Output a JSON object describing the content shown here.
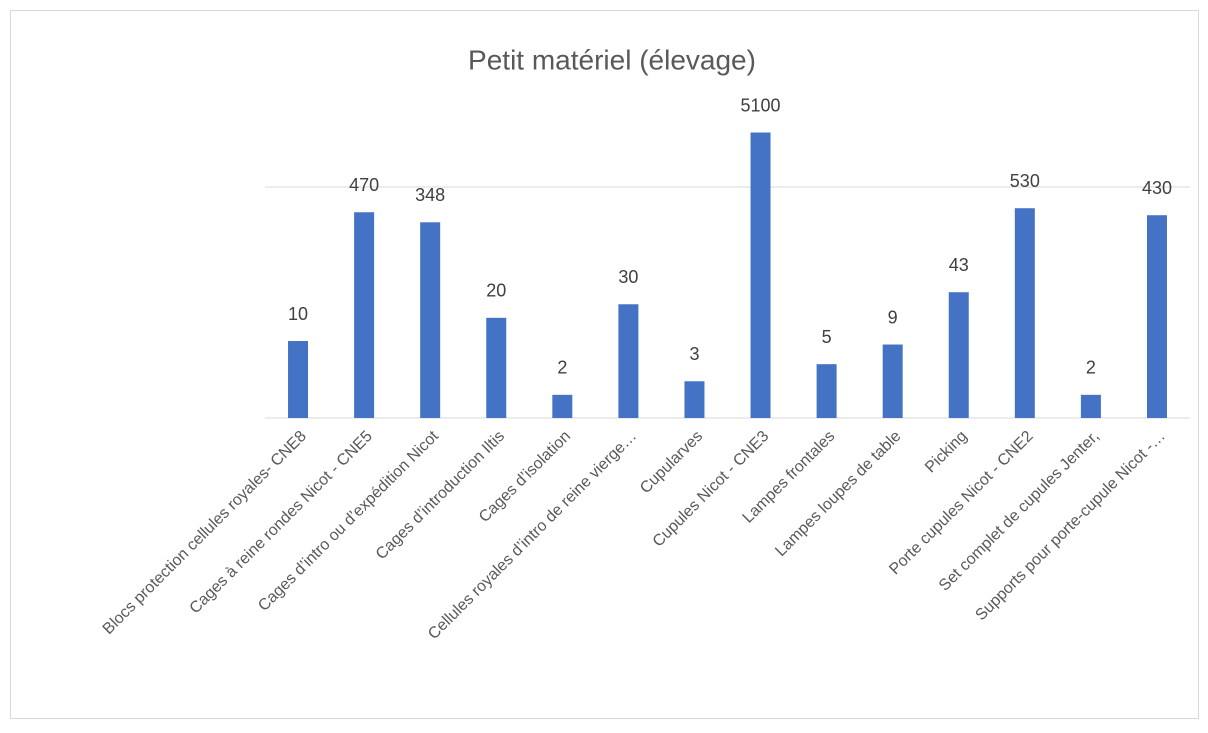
{
  "chart_data": {
    "type": "bar",
    "title": "Petit matériel (élevage)",
    "categories": [
      "Blocs protection cellules royales- CNE8",
      "Cages à reine rondes Nicot - CNE5",
      "Cages d’intro ou d’expédition Nicot",
      "Cages d’introduction Iltis",
      "Cages d’isolation",
      "Cellules royales d’intro de reine vierge…",
      "Cupularves",
      "Cupules Nicot - CNE3",
      "Lampes frontales",
      "Lampes loupes de table",
      "Picking",
      "Porte cupules Nicot - CNE2",
      "Set complet de cupules Jenter,",
      "Supports pour porte-cupule Nicot -…"
    ],
    "values": [
      10,
      470,
      348,
      20,
      2,
      30,
      3,
      5100,
      5,
      9,
      43,
      530,
      2,
      430
    ],
    "color": "#4472c4",
    "ylim": [
      1,
      10000
    ],
    "yticks": [
      1,
      1000
    ],
    "log_scale": true,
    "grid": true
  }
}
